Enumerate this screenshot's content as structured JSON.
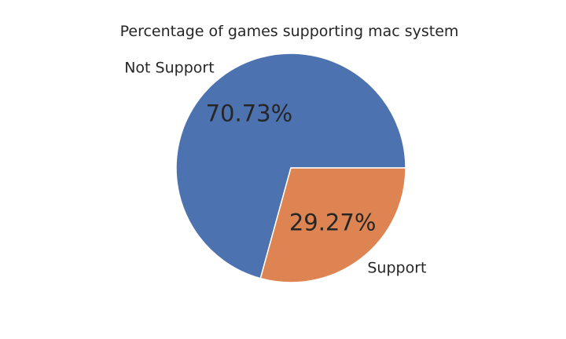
{
  "chart_data": {
    "type": "pie",
    "title": "Percentage of games supporting mac system",
    "categories": [
      "Not Support",
      "Support"
    ],
    "values": [
      70.73,
      29.27
    ],
    "value_labels": [
      "70.73%",
      "29.27%"
    ],
    "colors": [
      "#4c72b0",
      "#dd8452"
    ],
    "start_angle_deg": 0,
    "direction": "counterclockwise",
    "legend": "none"
  }
}
